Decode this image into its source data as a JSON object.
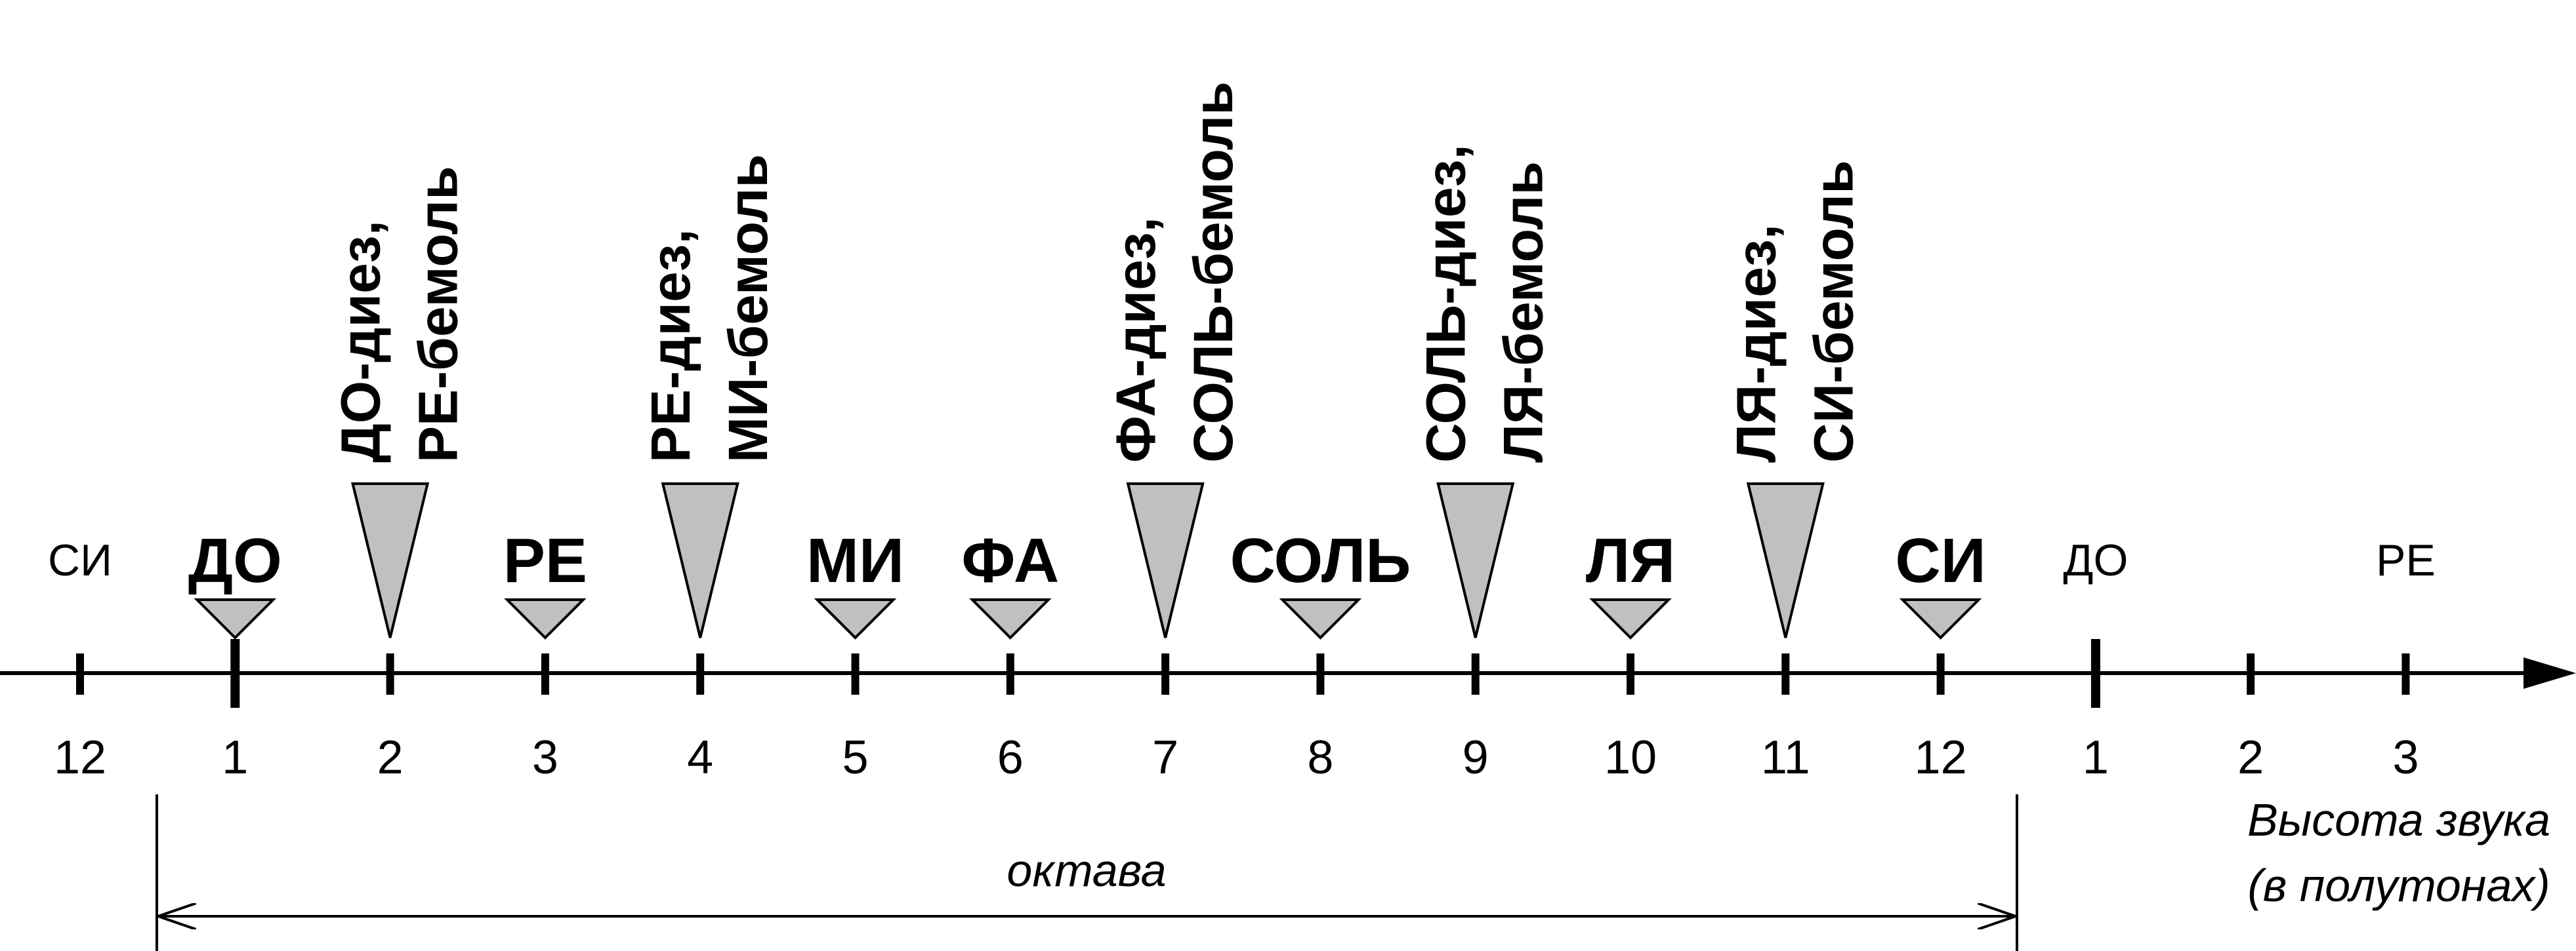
{
  "natural_notes": [
    {
      "pos": 1,
      "label": "ДО"
    },
    {
      "pos": 3,
      "label": "РЕ"
    },
    {
      "pos": 5,
      "label": "МИ"
    },
    {
      "pos": 6,
      "label": "ФА"
    },
    {
      "pos": 8,
      "label": "СОЛЬ"
    },
    {
      "pos": 10,
      "label": "ЛЯ"
    },
    {
      "pos": 12,
      "label": "СИ"
    }
  ],
  "accidental_notes": [
    {
      "pos": 2,
      "line1": "ДО-диез,",
      "line2": "РЕ-бемоль"
    },
    {
      "pos": 4,
      "line1": "РЕ-диез,",
      "line2": "МИ-бемоль"
    },
    {
      "pos": 7,
      "line1": "ФА-диез,",
      "line2": "СОЛЬ-бемоль"
    },
    {
      "pos": 9,
      "line1": "СОЛЬ-диез,",
      "line2": "ЛЯ-бемоль"
    },
    {
      "pos": 11,
      "line1": "ЛЯ-диез,",
      "line2": "СИ-бемоль"
    }
  ],
  "outside_notes": [
    {
      "pos": 0,
      "label": "СИ"
    },
    {
      "pos": 13,
      "label": "ДО"
    },
    {
      "pos": 15,
      "label": "РЕ"
    }
  ],
  "tick_labels": [
    "12",
    "1",
    "2",
    "3",
    "4",
    "5",
    "6",
    "7",
    "8",
    "9",
    "10",
    "11",
    "12",
    "1",
    "2",
    "3"
  ],
  "octave_label": "октава",
  "axis_label_line1": "Высота звука",
  "axis_label_line2": "(в полутонах)",
  "colors": {
    "marker_fill": "#c0c0c0",
    "line": "#000000"
  }
}
